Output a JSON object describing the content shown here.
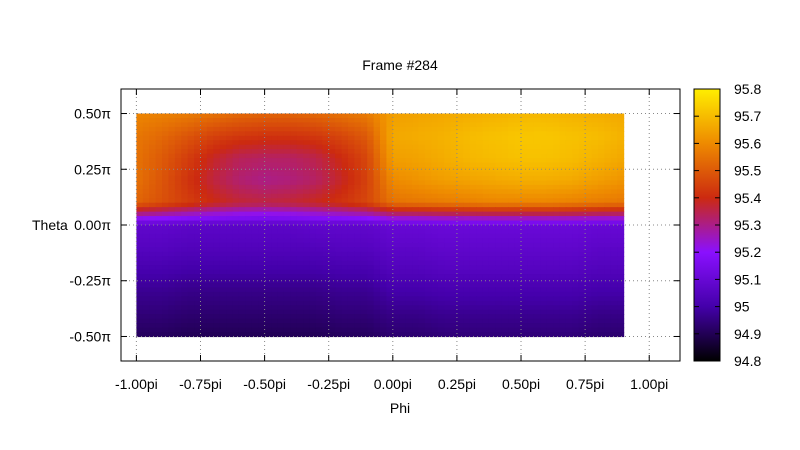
{
  "chart_data": {
    "type": "heatmap",
    "title": "Frame #284",
    "xlabel": "Phi",
    "ylabel": "Theta",
    "xlim": [
      -1.06,
      1.12
    ],
    "ylim": [
      -0.61,
      0.61
    ],
    "data_extent": {
      "x": [
        -1.0,
        0.9
      ],
      "y": [
        -0.5,
        0.5
      ]
    },
    "x_ticks": [
      {
        "value": -1.0,
        "label": "-1.00pi"
      },
      {
        "value": -0.75,
        "label": "-0.75pi"
      },
      {
        "value": -0.5,
        "label": "-0.50pi"
      },
      {
        "value": -0.25,
        "label": "-0.25pi"
      },
      {
        "value": 0.0,
        "label": "0.00pi"
      },
      {
        "value": 0.25,
        "label": "0.25pi"
      },
      {
        "value": 0.5,
        "label": "0.50pi"
      },
      {
        "value": 0.75,
        "label": "0.75pi"
      },
      {
        "value": 1.0,
        "label": "1.00pi"
      }
    ],
    "y_ticks": [
      {
        "value": 0.5,
        "label": "0.50π"
      },
      {
        "value": 0.25,
        "label": "0.25π"
      },
      {
        "value": 0.0,
        "label": "0.00π"
      },
      {
        "value": -0.25,
        "label": "-0.25π"
      },
      {
        "value": -0.5,
        "label": "-0.50π"
      }
    ],
    "grid": true,
    "colorbar": {
      "range": [
        94.8,
        95.8
      ],
      "ticks": [
        {
          "value": 95.8,
          "label": "95.8"
        },
        {
          "value": 95.7,
          "label": "95.7"
        },
        {
          "value": 95.6,
          "label": "95.6"
        },
        {
          "value": 95.5,
          "label": "95.5"
        },
        {
          "value": 95.4,
          "label": "95.4"
        },
        {
          "value": 95.3,
          "label": "95.3"
        },
        {
          "value": 95.2,
          "label": "95.2"
        },
        {
          "value": 95.1,
          "label": "95.1"
        },
        {
          "value": 95.0,
          "label": "95"
        },
        {
          "value": 94.9,
          "label": "94.9"
        },
        {
          "value": 94.8,
          "label": "94.8"
        }
      ],
      "colormap": "black-purple-red-orange-yellow",
      "colors": [
        "#000000",
        "#4400aa",
        "#8a10ff",
        "#cc2a10",
        "#ee8a00",
        "#ffee00"
      ],
      "placement": "right"
    },
    "grid_z": {
      "phi": [
        -1.0,
        -0.9,
        -0.8,
        -0.7,
        -0.6,
        -0.5,
        -0.4,
        -0.3,
        -0.2,
        -0.1,
        0.0,
        0.1,
        0.2,
        0.3,
        0.4,
        0.5,
        0.6,
        0.7,
        0.8,
        0.9
      ],
      "theta": [
        0.5,
        0.4,
        0.3,
        0.2,
        0.1,
        0.0,
        -0.1,
        -0.2,
        -0.3,
        -0.4,
        -0.5
      ],
      "z": [
        [
          95.59,
          95.58,
          95.57,
          95.55,
          95.53,
          95.52,
          95.52,
          95.53,
          95.55,
          95.57,
          95.64,
          95.65,
          95.66,
          95.67,
          95.68,
          95.69,
          95.69,
          95.68,
          95.67,
          95.66
        ],
        [
          95.56,
          95.53,
          95.49,
          95.45,
          95.43,
          95.42,
          95.42,
          95.43,
          95.46,
          95.5,
          95.66,
          95.67,
          95.68,
          95.7,
          95.71,
          95.72,
          95.72,
          95.71,
          95.7,
          95.68
        ],
        [
          95.55,
          95.5,
          95.44,
          95.38,
          95.34,
          95.33,
          95.33,
          95.35,
          95.4,
          95.46,
          95.64,
          95.65,
          95.67,
          95.69,
          95.7,
          95.71,
          95.71,
          95.7,
          95.68,
          95.66
        ],
        [
          95.55,
          95.49,
          95.42,
          95.36,
          95.32,
          95.3,
          95.31,
          95.33,
          95.38,
          95.45,
          95.6,
          95.62,
          95.64,
          95.65,
          95.66,
          95.67,
          95.67,
          95.66,
          95.64,
          95.62
        ],
        [
          95.52,
          95.48,
          95.44,
          95.4,
          95.37,
          95.36,
          95.37,
          95.39,
          95.42,
          95.46,
          95.55,
          95.56,
          95.57,
          95.58,
          95.59,
          95.59,
          95.59,
          95.58,
          95.57,
          95.56
        ],
        [
          95.08,
          95.08,
          95.07,
          95.07,
          95.07,
          95.07,
          95.07,
          95.08,
          95.08,
          95.08,
          95.1,
          95.1,
          95.11,
          95.11,
          95.11,
          95.11,
          95.11,
          95.11,
          95.1,
          95.1
        ],
        [
          95.05,
          95.05,
          95.04,
          95.04,
          95.04,
          95.04,
          95.04,
          95.04,
          95.05,
          95.05,
          95.07,
          95.07,
          95.08,
          95.08,
          95.08,
          95.08,
          95.08,
          95.08,
          95.07,
          95.07
        ],
        [
          95.01,
          95.01,
          95.0,
          95.0,
          95.0,
          95.0,
          95.0,
          95.0,
          95.01,
          95.01,
          95.04,
          95.04,
          95.05,
          95.05,
          95.05,
          95.05,
          95.05,
          95.05,
          95.04,
          95.04
        ],
        [
          94.97,
          94.97,
          94.96,
          94.96,
          94.96,
          94.96,
          94.96,
          94.96,
          94.97,
          94.97,
          95.0,
          95.0,
          95.01,
          95.01,
          95.01,
          95.01,
          95.01,
          95.01,
          95.0,
          95.0
        ],
        [
          94.94,
          94.94,
          94.93,
          94.93,
          94.93,
          94.93,
          94.93,
          94.93,
          94.94,
          94.94,
          94.96,
          94.96,
          94.97,
          94.97,
          94.97,
          94.97,
          94.97,
          94.97,
          94.96,
          94.96
        ],
        [
          94.91,
          94.91,
          94.9,
          94.9,
          94.9,
          94.9,
          94.9,
          94.9,
          94.91,
          94.91,
          94.93,
          94.93,
          94.94,
          94.94,
          94.94,
          94.94,
          94.94,
          94.94,
          94.93,
          94.93
        ]
      ]
    }
  }
}
